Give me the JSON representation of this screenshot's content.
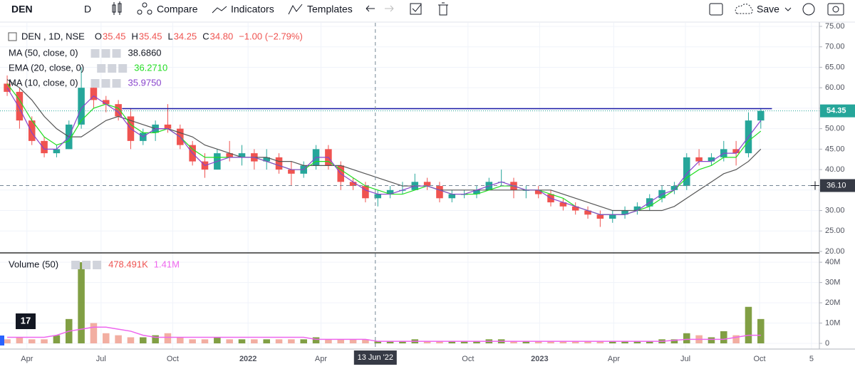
{
  "chart_data": {
    "type": "candlestick",
    "toolbar": {
      "symbol": "DEN",
      "interval": "D",
      "items": [
        "Compare",
        "Indicators",
        "Templates"
      ],
      "save": "Save"
    },
    "legend": {
      "title": "DEN , 1D, NSE",
      "o_label": "O",
      "o": "35.45",
      "h_label": "H",
      "h": "35.45",
      "l_label": "L",
      "l": "34.25",
      "c_label": "C",
      "c": "34.80",
      "change": "−1.00 (−2.79%)"
    },
    "up_color": "#26a69a",
    "down_color": "#ef5350",
    "xlim": [
      -0.58,
      65.74
    ],
    "xticks": [
      {
        "value": 1.6,
        "label": "Apr"
      },
      {
        "value": 7.6,
        "label": "Jul"
      },
      {
        "value": 13.4,
        "label": "Oct"
      },
      {
        "value": 19.5,
        "label": "2022"
      },
      {
        "value": 25.4,
        "label": "Apr"
      },
      {
        "value": 37.3,
        "label": "Oct"
      },
      {
        "value": 43.1,
        "label": "2023"
      },
      {
        "value": 49.1,
        "label": "Apr"
      },
      {
        "value": 54.9,
        "label": "Jul"
      },
      {
        "value": 60.9,
        "label": "Oct"
      },
      {
        "value": 65.1,
        "label": "5"
      }
    ],
    "ylim": [
      19.65,
      75.87
    ],
    "yticks": [
      {
        "value": 20,
        "label": "20.00"
      },
      {
        "value": 25,
        "label": "25.00"
      },
      {
        "value": 30,
        "label": "30.00"
      },
      {
        "value": 35,
        "label": "35.00"
      },
      {
        "value": 40,
        "label": "40.00"
      },
      {
        "value": 45,
        "label": "45.00"
      },
      {
        "value": 50,
        "label": "50.00"
      },
      {
        "value": 55,
        "label": "55.00"
      },
      {
        "value": 60,
        "label": "60.00"
      },
      {
        "value": 65,
        "label": "65.00"
      },
      {
        "value": 70,
        "label": "70.00"
      },
      {
        "value": 75,
        "label": "75.00"
      }
    ],
    "grid": true,
    "open": [
      61,
      59,
      52,
      47,
      44,
      45,
      51,
      60,
      57,
      56,
      53,
      47,
      49,
      51,
      50,
      46,
      42,
      40,
      44,
      43,
      44,
      42,
      43,
      40,
      39,
      41,
      45,
      41,
      37,
      36,
      33,
      34,
      35,
      35,
      37,
      36,
      33,
      34,
      34,
      35,
      37,
      37,
      35,
      35,
      34,
      32,
      31,
      30,
      29,
      28,
      29,
      30,
      31,
      33,
      35,
      36,
      43,
      42,
      43,
      45,
      44,
      52
    ],
    "high": [
      63,
      60,
      53,
      48,
      46,
      52,
      65,
      62,
      58,
      57,
      55,
      50,
      52,
      56,
      51,
      47,
      44,
      45,
      47,
      46,
      45,
      45,
      44,
      42,
      42,
      46,
      46,
      42,
      38,
      37,
      35,
      36,
      37,
      39,
      38,
      37,
      35,
      35,
      36,
      38,
      40,
      38,
      36,
      36,
      35,
      33,
      32,
      31,
      30,
      30,
      31,
      32,
      34,
      36,
      37,
      44,
      45,
      44,
      47,
      47,
      54,
      55
    ],
    "low": [
      58,
      50,
      46,
      43,
      43,
      45,
      50,
      55,
      54,
      52,
      45,
      46,
      47,
      49,
      45,
      41,
      38,
      40,
      42,
      41,
      40,
      40,
      39,
      36,
      38,
      40,
      40,
      35,
      35,
      32,
      31,
      33,
      34,
      35,
      35,
      32,
      32,
      33,
      33,
      35,
      36,
      33,
      33,
      33,
      31,
      30,
      29,
      28,
      26,
      27,
      28,
      29,
      30,
      32,
      34,
      35,
      41,
      41,
      42,
      41,
      43,
      50
    ],
    "close": [
      59,
      52,
      47,
      44,
      45,
      51,
      60,
      57,
      56,
      53,
      47,
      49,
      51,
      50,
      46,
      42,
      40,
      44,
      43,
      44,
      42,
      43,
      40,
      39,
      41,
      45,
      41,
      37,
      36,
      33,
      34,
      35,
      35,
      37,
      36,
      33,
      34,
      34,
      35,
      37,
      37,
      35,
      35,
      34,
      32,
      31,
      30,
      29,
      28,
      29,
      30,
      31,
      33,
      35,
      36,
      43,
      42,
      43,
      45,
      44,
      52,
      54.35
    ],
    "series": [
      {
        "name": "MA (50, close, 0)",
        "color": "#555555",
        "value_label": "38.6860",
        "values": [
          62,
          60,
          57,
          53,
          50,
          48,
          48,
          50,
          52,
          53,
          52,
          51,
          50,
          50,
          49,
          48,
          46,
          45,
          44,
          43,
          43,
          43,
          42,
          42,
          41,
          41,
          41,
          41,
          40,
          39,
          38,
          37,
          36,
          36,
          36,
          35,
          35,
          35,
          35,
          35,
          35,
          35,
          35,
          35,
          35,
          34,
          33,
          32,
          31,
          30,
          30,
          30,
          30,
          30,
          31,
          33,
          35,
          37,
          39,
          40,
          42,
          45
        ]
      },
      {
        "name": "EMA (20, close, 0)",
        "color": "#22dd22",
        "value_label": "36.2710",
        "values": [
          61,
          57,
          52,
          48,
          46,
          47,
          52,
          55,
          56,
          55,
          51,
          49,
          49,
          50,
          48,
          45,
          43,
          43,
          43,
          43,
          43,
          42,
          41,
          40,
          40,
          42,
          42,
          40,
          38,
          36,
          35,
          34,
          34,
          35,
          36,
          35,
          34,
          34,
          34,
          35,
          36,
          36,
          35,
          35,
          34,
          33,
          31,
          30,
          29,
          29,
          29,
          30,
          31,
          33,
          35,
          38,
          40,
          41,
          43,
          43,
          47,
          49.4
        ]
      },
      {
        "name": "MA (10, close, 0)",
        "color": "#8844cc",
        "value_label": "35.9750",
        "values": [
          60,
          55,
          49,
          45,
          45,
          48,
          55,
          58,
          56,
          54,
          50,
          48,
          50,
          50,
          48,
          44,
          41,
          42,
          43,
          43,
          43,
          42,
          41,
          40,
          40,
          43,
          43,
          39,
          37,
          35,
          34,
          34,
          35,
          36,
          36,
          35,
          34,
          34,
          35,
          36,
          37,
          36,
          35,
          35,
          33,
          32,
          31,
          30,
          29,
          29,
          29,
          30,
          32,
          34,
          35,
          39,
          42,
          42,
          44,
          44,
          48,
          52
        ]
      }
    ],
    "hline": {
      "value": 54.9,
      "color": "#1a1aa6",
      "from": 9.3,
      "to": 61.9
    },
    "crosshair": {
      "x": {
        "value": 29.8,
        "label": "13 Jun '22"
      },
      "y": {
        "value": 36.1,
        "label": "36.10"
      }
    },
    "volume": {
      "name": "Volume (50)",
      "value_label": "478.491K",
      "ma_label": "1.41M",
      "ma_color": "#ee66ee",
      "up_color": "#6b8e23",
      "down_color": "#f0a090",
      "ylim": [
        -2.8,
        43.9
      ],
      "yticks": [
        0,
        {
          "value": 10,
          "label": "10M"
        },
        {
          "value": 20,
          "label": "20M"
        },
        {
          "value": 30,
          "label": "30M"
        },
        {
          "value": 40,
          "label": "40M"
        }
      ],
      "values": [
        2,
        3,
        2,
        2,
        4,
        12,
        40,
        10,
        5,
        4,
        3,
        3,
        4,
        5,
        3,
        2,
        2,
        3,
        2,
        2,
        2,
        2,
        2,
        2,
        2,
        3,
        2,
        2,
        2,
        2,
        1,
        1,
        1,
        2,
        1,
        1,
        1,
        1,
        1,
        2,
        2,
        1,
        1,
        1,
        1,
        1,
        1,
        1,
        1,
        1,
        1,
        1,
        1,
        2,
        2,
        5,
        4,
        3,
        6,
        4,
        18,
        12
      ],
      "ma_values": [
        3,
        3,
        3,
        3,
        4,
        6,
        7,
        8,
        8,
        7,
        6,
        4,
        3,
        3,
        3,
        3,
        3,
        3,
        3,
        3,
        3,
        3,
        3,
        3,
        3,
        2,
        2,
        2,
        2,
        2,
        1,
        1,
        1,
        1,
        1,
        1,
        1,
        1,
        1,
        1,
        1,
        1,
        1,
        1,
        1,
        1,
        1,
        1,
        1,
        1,
        1,
        1,
        1,
        1,
        1.5,
        2,
        2,
        2,
        2,
        3,
        4,
        4
      ]
    }
  }
}
